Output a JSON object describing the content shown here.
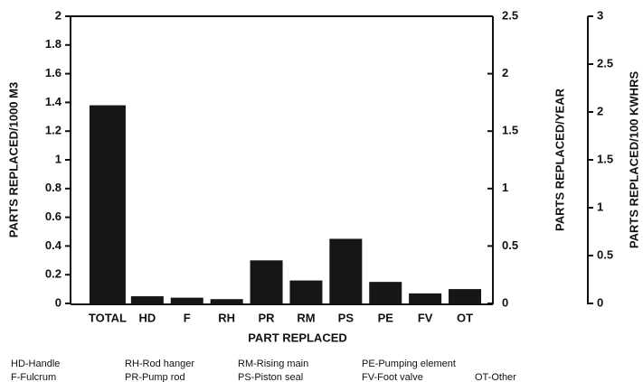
{
  "chart_data": {
    "type": "bar",
    "x_label": "PART REPLACED",
    "y_label": "PARTS REPLACED/1000 M3",
    "y2_label": "PARTS REPLACED/YEAR",
    "y3_label": "PARTS REPLACED/100 KWHRS",
    "categories": [
      "TOTAL",
      "HD",
      "F",
      "RH",
      "PR",
      "RM",
      "PS",
      "PE",
      "FV",
      "OT"
    ],
    "values": [
      1.38,
      0.05,
      0.04,
      0.03,
      0.3,
      0.16,
      0.45,
      0.15,
      0.07,
      0.1
    ],
    "color": "#161616",
    "ylim": [
      0,
      2
    ],
    "yticks": [
      0,
      0.2,
      0.4,
      0.6,
      0.8,
      1,
      1.2,
      1.4,
      1.6,
      1.8,
      2
    ],
    "y2lim": [
      0,
      2.5
    ],
    "y2ticks": [
      0,
      0.5,
      1,
      1.5,
      2,
      2.5
    ],
    "y3lim": [
      0,
      3
    ],
    "y3ticks": [
      0,
      0.5,
      1,
      1.5,
      2,
      2.5,
      3
    ],
    "legend_notes": [
      "HD-Handle",
      "RH-Rod hanger",
      "RM-Rising main",
      "PE-Pumping element",
      "F-Fulcrum",
      "PR-Pump rod",
      "PS-Piston seal",
      "FV-Foot valve",
      "OT-Other"
    ]
  }
}
